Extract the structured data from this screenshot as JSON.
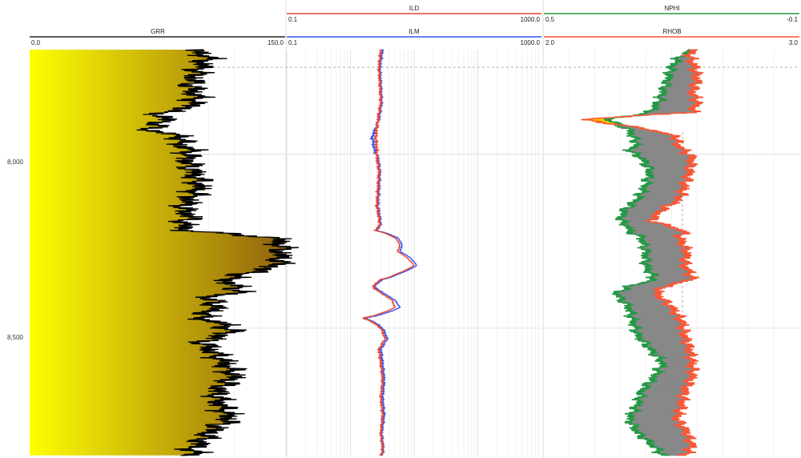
{
  "chart_data": [
    {
      "type": "line",
      "track": "gamma",
      "series": [
        {
          "name": "GRR",
          "color": "#000000",
          "scale": [
            0.0,
            150.0
          ],
          "scale_labels": [
            "0.0",
            "150.0"
          ],
          "fill": {
            "type": "gradient",
            "colors": [
              "#ffff00",
              "#8a5a10"
            ]
          },
          "depth": [
            7700,
            7720,
            7750,
            7780,
            7800,
            7840,
            7870,
            7880,
            7900,
            7930,
            7950,
            7970,
            7990,
            8010,
            8050,
            8090,
            8130,
            8160,
            8180,
            8200,
            8220,
            8240,
            8260,
            8280,
            8290,
            8300,
            8320,
            8340,
            8360,
            8380,
            8395,
            8410,
            8440,
            8470,
            8490,
            8510,
            8540,
            8570,
            8600,
            8640,
            8680,
            8720,
            8760,
            8790,
            8820,
            8850,
            8866
          ],
          "values": [
            95,
            105,
            100,
            97,
            95,
            98,
            93,
            75,
            80,
            70,
            90,
            88,
            95,
            92,
            96,
            100,
            94,
            90,
            95,
            90,
            92,
            145,
            147,
            148,
            147,
            148,
            145,
            130,
            115,
            120,
            125,
            105,
            110,
            100,
            115,
            118,
            102,
            108,
            115,
            120,
            110,
            112,
            118,
            108,
            102,
            95,
            98
          ]
        }
      ]
    },
    {
      "type": "line",
      "track": "resistivity",
      "axis_scale": "log",
      "series": [
        {
          "name": "ILD",
          "color": "#ee4433",
          "scale": [
            0.1,
            1000.0
          ],
          "scale_labels": [
            "0.1",
            "1000.0"
          ],
          "depth": [
            7700,
            7750,
            7800,
            7850,
            7900,
            7950,
            7990,
            8010,
            8050,
            8100,
            8150,
            8200,
            8220,
            8240,
            8260,
            8280,
            8300,
            8320,
            8340,
            8360,
            8380,
            8400,
            8420,
            8440,
            8470,
            8500,
            8530,
            8560,
            8600,
            8650,
            8700,
            8750,
            8800,
            8850,
            8866
          ],
          "values": [
            3.0,
            2.8,
            2.9,
            3.0,
            2.7,
            2.5,
            2.6,
            2.6,
            2.8,
            2.7,
            2.6,
            2.9,
            2.5,
            5.0,
            6.0,
            5.5,
            8.0,
            10.0,
            6.0,
            3.0,
            2.2,
            3.0,
            4.5,
            5.0,
            1.6,
            3.0,
            3.5,
            2.8,
            3.0,
            3.2,
            3.0,
            3.2,
            3.0,
            3.2,
            3.0
          ]
        },
        {
          "name": "ILM",
          "color": "#3355ee",
          "scale": [
            0.1,
            1000.0
          ],
          "scale_labels": [
            "0.1",
            "1000.0"
          ],
          "depth": [
            7700,
            7750,
            7800,
            7850,
            7900,
            7950,
            7990,
            8010,
            8050,
            8100,
            8150,
            8200,
            8220,
            8240,
            8260,
            8280,
            8300,
            8320,
            8340,
            8360,
            8380,
            8400,
            8420,
            8440,
            8470,
            8500,
            8530,
            8560,
            8600,
            8650,
            8700,
            8750,
            8800,
            8850,
            8866
          ],
          "values": [
            3.2,
            2.9,
            3.0,
            3.1,
            2.8,
            2.2,
            2.4,
            2.7,
            2.9,
            2.8,
            2.7,
            3.0,
            2.6,
            5.5,
            6.5,
            6.0,
            9.0,
            11.0,
            6.5,
            3.2,
            2.3,
            3.3,
            5.0,
            6.0,
            1.7,
            3.2,
            3.8,
            3.0,
            3.2,
            3.4,
            3.2,
            3.4,
            3.1,
            3.3,
            3.1
          ]
        }
      ]
    },
    {
      "type": "line",
      "track": "porosity-density",
      "series": [
        {
          "name": "NPHI",
          "color": "#229944",
          "scale": [
            0.5,
            -0.1
          ],
          "scale_labels": [
            "0.5",
            "-0.1"
          ],
          "depth": [
            7700,
            7720,
            7750,
            7790,
            7820,
            7850,
            7880,
            7900,
            7930,
            7950,
            7970,
            7990,
            8010,
            8050,
            8090,
            8130,
            8160,
            8190,
            8210,
            8220,
            8240,
            8280,
            8320,
            8340,
            8360,
            8380,
            8400,
            8440,
            8480,
            8520,
            8560,
            8600,
            8640,
            8680,
            8720,
            8760,
            8800,
            8840,
            8866
          ],
          "values": [
            0.15,
            0.18,
            0.2,
            0.21,
            0.22,
            0.23,
            0.25,
            0.35,
            0.3,
            0.29,
            0.28,
            0.3,
            0.27,
            0.25,
            0.26,
            0.28,
            0.31,
            0.32,
            0.3,
            0.3,
            0.27,
            0.26,
            0.26,
            0.25,
            0.24,
            0.3,
            0.33,
            0.3,
            0.29,
            0.28,
            0.25,
            0.22,
            0.24,
            0.27,
            0.28,
            0.3,
            0.28,
            0.24,
            0.22
          ]
        },
        {
          "name": "RHOB",
          "color": "#ff5533",
          "scale": [
            2.0,
            3.0
          ],
          "scale_labels": [
            "2.0",
            "3.0"
          ],
          "depth": [
            7700,
            7720,
            7750,
            7790,
            7820,
            7850,
            7880,
            7900,
            7930,
            7950,
            7970,
            7990,
            8010,
            8050,
            8090,
            8130,
            8160,
            8190,
            8210,
            8220,
            8240,
            8280,
            8320,
            8340,
            8360,
            8380,
            8400,
            8440,
            8480,
            8520,
            8560,
            8600,
            8640,
            8680,
            8720,
            8760,
            8800,
            8840,
            8866
          ],
          "values": [
            2.58,
            2.57,
            2.59,
            2.6,
            2.58,
            2.6,
            2.58,
            2.15,
            2.42,
            2.52,
            2.52,
            2.55,
            2.58,
            2.57,
            2.55,
            2.53,
            2.46,
            2.42,
            2.5,
            2.55,
            2.53,
            2.56,
            2.55,
            2.57,
            2.58,
            2.47,
            2.44,
            2.5,
            2.54,
            2.55,
            2.57,
            2.58,
            2.58,
            2.55,
            2.54,
            2.52,
            2.56,
            2.58,
            2.55
          ]
        }
      ],
      "fill": {
        "between": [
          "NPHI",
          "RHOB"
        ],
        "color": "#888888",
        "crossover_color": "#f4c400"
      }
    }
  ],
  "depth_axis": {
    "range": [
      7700,
      8866
    ],
    "ticks": [
      8000,
      8500
    ],
    "tick_labels": [
      "8,000",
      "8,500"
    ]
  }
}
